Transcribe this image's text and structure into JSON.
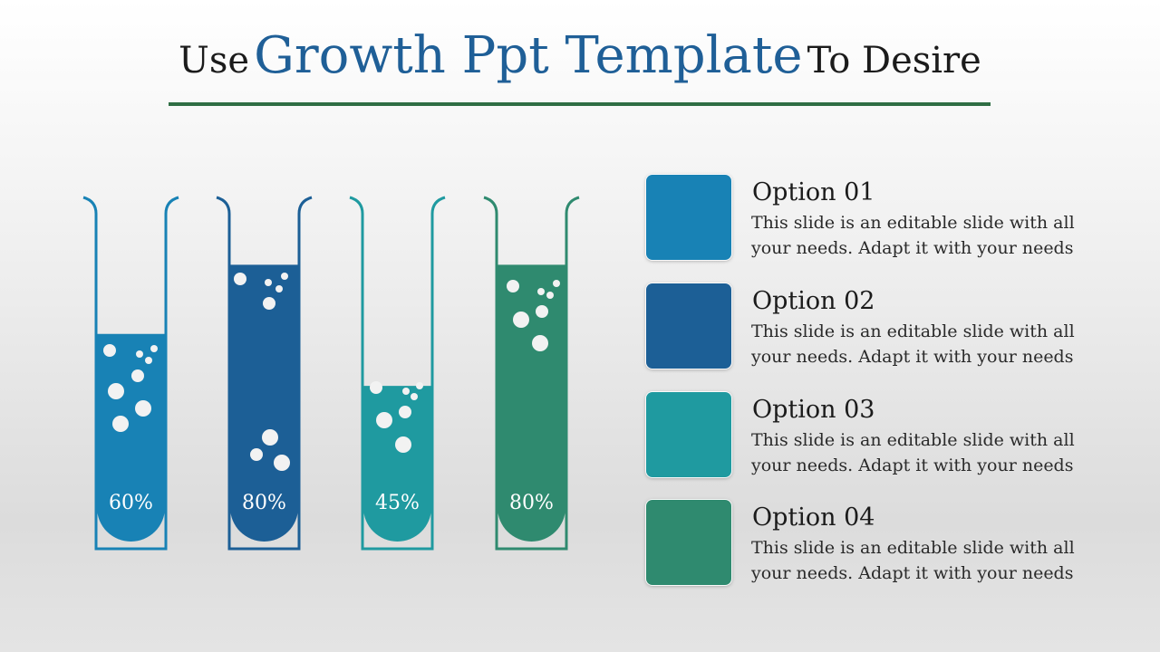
{
  "title": {
    "prefix": "Use",
    "highlight": "Growth Ppt Template",
    "suffix": "To Desire"
  },
  "tubes": [
    {
      "percent_label": "60%",
      "fill_percent": 60,
      "color": "#1882b5"
    },
    {
      "percent_label": "80%",
      "fill_percent": 80,
      "color": "#1c5f96"
    },
    {
      "percent_label": "45%",
      "fill_percent": 45,
      "color": "#1f9aa0"
    },
    {
      "percent_label": "80%",
      "fill_percent": 80,
      "color": "#2f8a6f"
    }
  ],
  "options": [
    {
      "title": "Option 01",
      "text": "This slide is an editable slide with all your needs. Adapt it with your needs",
      "color": "#1882b5"
    },
    {
      "title": "Option 02",
      "text": "This slide is an editable slide with all your needs. Adapt it with your needs",
      "color": "#1c5f96"
    },
    {
      "title": "Option 03",
      "text": "This slide is an editable slide with all your needs. Adapt it with your needs",
      "color": "#1f9aa0"
    },
    {
      "title": "Option 04",
      "text": "This slide is an editable slide with all your needs. Adapt it with your needs",
      "color": "#2f8a6f"
    }
  ]
}
